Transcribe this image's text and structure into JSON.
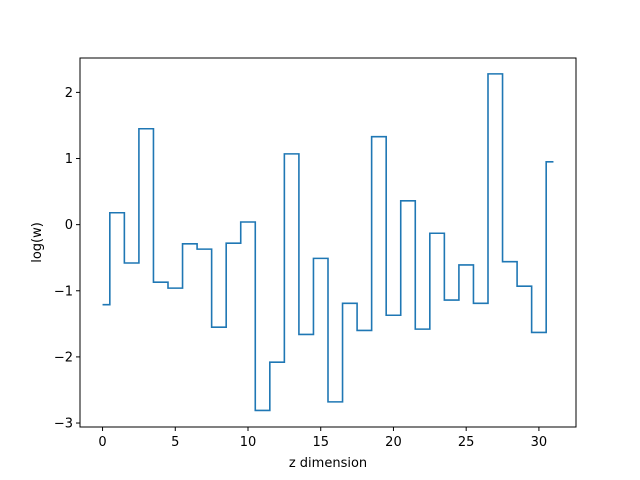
{
  "chart_data": {
    "type": "line",
    "style": "step",
    "title": "",
    "xlabel": "z dimension",
    "ylabel": "log(w)",
    "xlim": [
      -1.55,
      32.55
    ],
    "ylim": [
      -3.06,
      2.52
    ],
    "xticks": [
      0,
      5,
      10,
      15,
      20,
      25,
      30
    ],
    "yticks": [
      -3,
      -2,
      -1,
      0,
      1,
      2
    ],
    "grid": false,
    "series": [
      {
        "color": "#1f77b4",
        "x": [
          0,
          1,
          2,
          3,
          4,
          5,
          6,
          7,
          8,
          9,
          10,
          11,
          12,
          13,
          14,
          15,
          16,
          17,
          18,
          19,
          20,
          21,
          22,
          23,
          24,
          25,
          26,
          27,
          28,
          29,
          30,
          31
        ],
        "y": [
          -1.21,
          0.18,
          -0.58,
          1.45,
          -0.87,
          -0.96,
          -0.29,
          -0.37,
          -1.55,
          -0.28,
          0.04,
          -2.81,
          -2.08,
          1.07,
          -1.66,
          -0.51,
          -2.68,
          -1.19,
          -1.6,
          1.33,
          -1.37,
          0.36,
          -1.58,
          -0.13,
          -1.14,
          -0.61,
          -1.19,
          2.28,
          -0.56,
          -0.93,
          -1.63,
          0.95
        ]
      }
    ]
  }
}
